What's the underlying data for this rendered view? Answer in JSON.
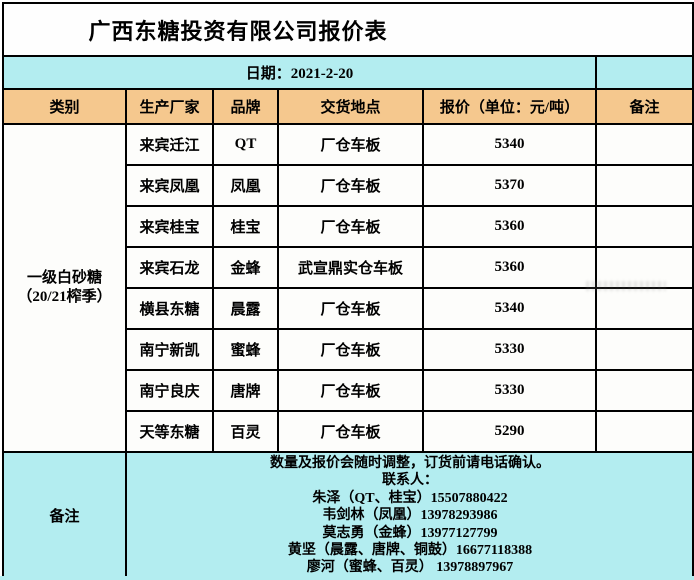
{
  "title": "广西东糖投资有限公司报价表",
  "date_label": "日期：2021-2-20",
  "columns": [
    "类别",
    "生产厂家",
    "品牌",
    "交货地点",
    "报价（单位：元/吨）",
    "备注"
  ],
  "category": {
    "line1": "一级白砂糖",
    "line2": "（20/21榨季）"
  },
  "rows": [
    {
      "manufacturer": "来宾迁江",
      "brand": "QT",
      "delivery": "厂仓车板",
      "price": "5340",
      "remark": ""
    },
    {
      "manufacturer": "来宾凤凰",
      "brand": "凤凰",
      "delivery": "厂仓车板",
      "price": "5370",
      "remark": ""
    },
    {
      "manufacturer": "来宾桂宝",
      "brand": "桂宝",
      "delivery": "厂仓车板",
      "price": "5360",
      "remark": ""
    },
    {
      "manufacturer": "来宾石龙",
      "brand": "金蜂",
      "delivery": "武宣鼎实仓车板",
      "price": "5360",
      "remark": ""
    },
    {
      "manufacturer": "横县东糖",
      "brand": "晨露",
      "delivery": "厂仓车板",
      "price": "5340",
      "remark": ""
    },
    {
      "manufacturer": "南宁新凯",
      "brand": "蜜蜂",
      "delivery": "厂仓车板",
      "price": "5330",
      "remark": ""
    },
    {
      "manufacturer": "南宁良庆",
      "brand": "唐牌",
      "delivery": "厂仓车板",
      "price": "5330",
      "remark": ""
    },
    {
      "manufacturer": "天等东糖",
      "brand": "百灵",
      "delivery": "厂仓车板",
      "price": "5290",
      "remark": ""
    }
  ],
  "notes": {
    "label": "备注",
    "lines": [
      "数量及报价会随时调整，订货前请电话确认。",
      "联系人：",
      "朱泽（QT、桂宝）15507880422",
      "韦剑林（凤凰）13978293986",
      "莫志勇（金蜂）13977127799",
      "黄坚（晨露、唐牌、铜鼓）16677118388",
      "廖河（蜜蜂、百灵） 13978897967"
    ]
  },
  "colors": {
    "cyan_band": "#b3edf0",
    "orange_header": "#f5c88e",
    "border": "#000000",
    "cell_background": "#fdfdfb"
  }
}
